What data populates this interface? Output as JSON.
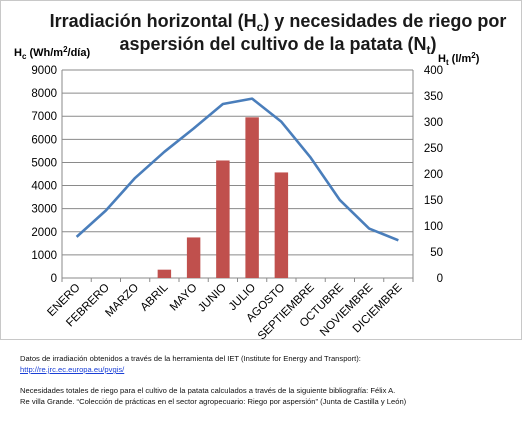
{
  "chart_data": {
    "type": "bar+line",
    "title_parts": {
      "line1_a": "Irradiación horizontal (H",
      "line1_sub": "c",
      "line1_b": ") y necesidades de riego por",
      "line2_a": "aspersión del cultivo de la patata (N",
      "line2_sub": "t",
      "line2_b": ")"
    },
    "y_left_label": "Hₓ (Wh/m²/día)",
    "y_left_label_parts": {
      "a": "H",
      "sub": "c",
      "b": " (Wh/m",
      "sup": "2",
      "c": "/día)"
    },
    "y_right_label_parts": {
      "a": "H",
      "sub": "t",
      "b": " (l/m",
      "sup": "2",
      "c": ")"
    },
    "y_left_range": [
      0,
      9000
    ],
    "y_left_ticks": [
      "0",
      "1000",
      "2000",
      "3000",
      "4000",
      "5000",
      "6000",
      "7000",
      "8000",
      "9000"
    ],
    "y_right_range": [
      0,
      400
    ],
    "y_right_ticks": [
      "0",
      "50",
      "100",
      "150",
      "200",
      "250",
      "300",
      "350",
      "400"
    ],
    "categories": [
      "ENERO",
      "FEBRERO",
      "MARZO",
      "ABRIL",
      "MAYO",
      "JUNIO",
      "JULIO",
      "AGOSTO",
      "SEPTIEMBRE",
      "OCTUBRE",
      "NOVIEMBRE",
      "DICIEMBRE"
    ],
    "series": [
      {
        "kind": "bar",
        "axis": "right",
        "color": "#c0504d",
        "values": [
          0,
          0,
          0,
          16,
          78,
          226,
          309,
          203,
          0,
          0,
          0,
          0
        ]
      },
      {
        "kind": "line",
        "axis": "left",
        "color": "#4a7ebb",
        "values": [
          1780,
          2920,
          4330,
          5460,
          6470,
          7530,
          7760,
          6760,
          5210,
          3370,
          2140,
          1630
        ]
      }
    ],
    "grid": "horizontal"
  },
  "notes": {
    "line1": "Datos  de  irradiación  obtenidos  a  través  de  la  herramienta  del  IET  (Institute  for Energy and Transport):",
    "link": "http://re.jrc.ec.europa.eu/pvgis/",
    "line3": "Necesidades totales de riego para el cultivo de la patata calculados a través de la siguiente bibliografía: Félix A.",
    "line4": "Re villa Grande. “Colección de prácticas en el sector agropecuario: Riego por aspersión” (Junta de Castilla y León)"
  }
}
